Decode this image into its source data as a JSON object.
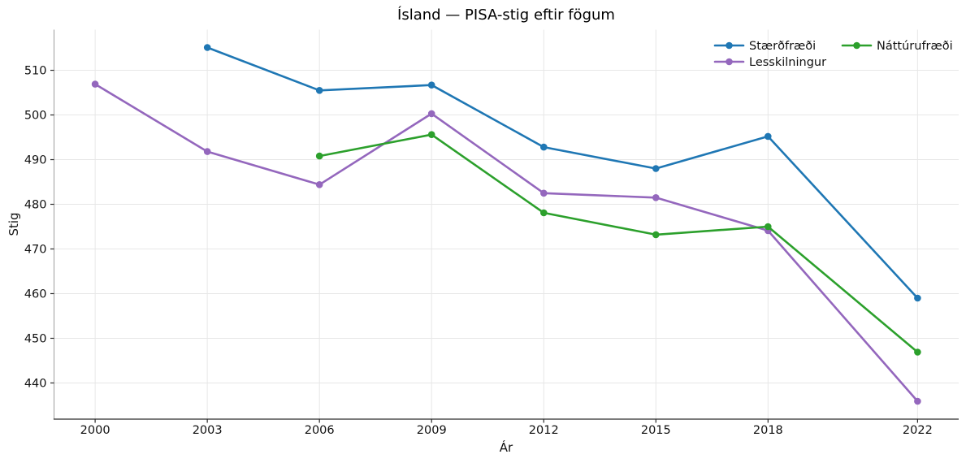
{
  "figure": {
    "background": "#ffffff",
    "text_color": "#111111"
  },
  "chart_data": {
    "type": "line",
    "title": "Ísland — PISA-stig eftir fögum",
    "xlabel": "Ár",
    "ylabel": "Stig",
    "x_ticks": [
      2000,
      2003,
      2006,
      2009,
      2012,
      2015,
      2018,
      2022
    ],
    "y_ticks": [
      440,
      450,
      460,
      470,
      480,
      490,
      500,
      510
    ],
    "xlim": [
      1998.9,
      2023.1
    ],
    "ylim": [
      431.9,
      519.1
    ],
    "grid": true,
    "grid_color": "#e7e7e7",
    "left_spine_color": "#9e9e9e",
    "bottom_spine_color": "#2b2b2b",
    "legend": {
      "position": "upper-right",
      "columns": 2,
      "frame": false,
      "entries": [
        "Stærðfræði",
        "Lesskilningur",
        "Náttúrufræði"
      ]
    },
    "series": [
      {
        "name": "Stærðfræði",
        "color": "#1f77b4",
        "x": [
          2003,
          2006,
          2009,
          2012,
          2015,
          2018,
          2022
        ],
        "values": [
          515.1,
          505.5,
          506.7,
          492.8,
          488.0,
          495.2,
          459.0
        ]
      },
      {
        "name": "Lesskilningur",
        "color": "#9467bd",
        "x": [
          2000,
          2003,
          2006,
          2009,
          2012,
          2015,
          2018,
          2022
        ],
        "values": [
          506.9,
          491.8,
          484.4,
          500.3,
          482.5,
          481.5,
          474.1,
          435.9
        ]
      },
      {
        "name": "Náttúrufræði",
        "color": "#2ca02c",
        "x": [
          2006,
          2009,
          2012,
          2015,
          2018,
          2022
        ],
        "values": [
          490.8,
          495.6,
          478.1,
          473.2,
          475.0,
          446.9
        ]
      }
    ]
  }
}
